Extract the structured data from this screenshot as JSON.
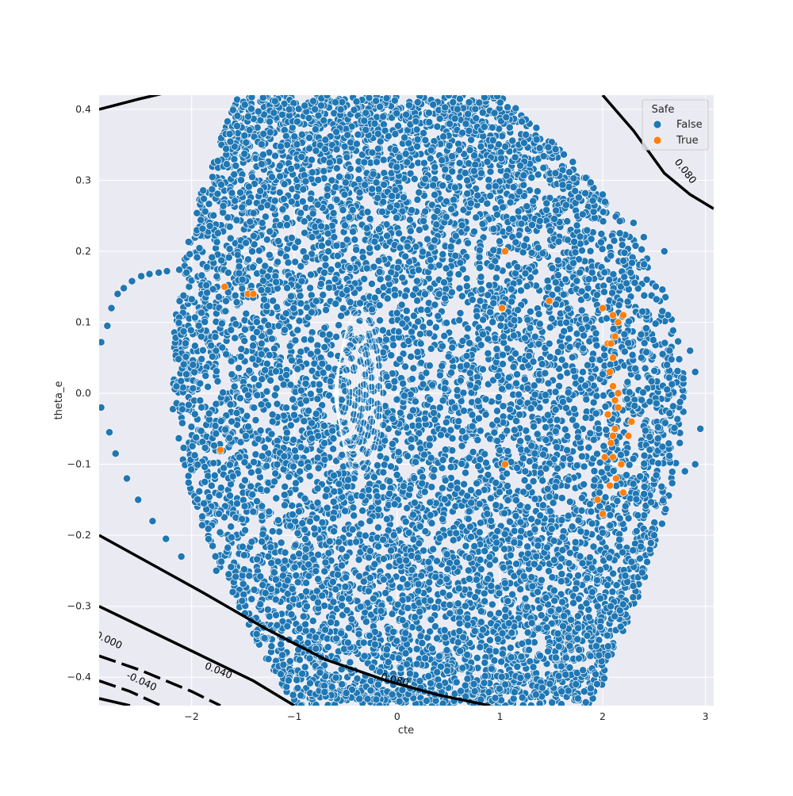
{
  "chart_data": {
    "type": "scatter",
    "title": "",
    "xlabel": "cte",
    "ylabel": "theta_e",
    "xlim": [
      -2.9,
      3.08
    ],
    "ylim": [
      -0.44,
      0.42
    ],
    "grid": true,
    "x_ticks": [
      -2,
      -1,
      0,
      1,
      2,
      3
    ],
    "x_tick_labels": [
      "−2",
      "−1",
      "0",
      "1",
      "2",
      "3"
    ],
    "y_ticks": [
      -0.4,
      -0.3,
      -0.2,
      -0.1,
      0.0,
      0.1,
      0.2,
      0.3,
      0.4
    ],
    "y_tick_labels": [
      "−0.4",
      "−0.3",
      "−0.2",
      "−0.1",
      "0.0",
      "0.1",
      "0.2",
      "0.3",
      "0.4"
    ],
    "legend": {
      "title": "Safe",
      "placement": "top-right",
      "entries": [
        {
          "label": "False",
          "color": "#1f77b4"
        },
        {
          "label": "True",
          "color": "#ff7f0e"
        }
      ]
    },
    "series": [
      {
        "name": "False",
        "color": "#1f77b4",
        "points_x": [
          -2.95,
          -2.88,
          -2.82,
          -2.78,
          -2.72,
          -2.66,
          -2.58,
          -2.49,
          -2.41,
          -2.32,
          -2.24,
          -2.12,
          -2.05,
          -2.88,
          -2.8,
          -2.74,
          -2.63,
          -2.52,
          -2.38,
          -2.25,
          -2.1,
          -1.76,
          -1.6,
          -1.48,
          -1.42,
          -1.3,
          -1.45,
          -1.2,
          -1.05,
          -0.9,
          -0.8,
          -0.6,
          0.2,
          0.7,
          1.6,
          1.74,
          1.88,
          1.76,
          1.82,
          2.5,
          2.9,
          2.85,
          2.95,
          2.9,
          2.4,
          2.6,
          2.3,
          2.0,
          1.9,
          2.75,
          2.8
        ],
        "points_y": [
          0.045,
          0.072,
          0.095,
          0.12,
          0.14,
          0.148,
          0.158,
          0.165,
          0.168,
          0.17,
          0.172,
          0.174,
          0.17,
          -0.02,
          -0.055,
          -0.085,
          -0.12,
          -0.15,
          -0.18,
          -0.205,
          -0.23,
          -0.25,
          -0.28,
          -0.31,
          -0.32,
          -0.33,
          0.39,
          0.395,
          0.4,
          0.405,
          0.4,
          0.41,
          0.41,
          0.41,
          -0.42,
          -0.41,
          -0.37,
          -0.43,
          -0.42,
          -0.2,
          0.03,
          0.06,
          -0.05,
          -0.1,
          0.22,
          0.2,
          0.24,
          0.28,
          -0.28,
          -0.07,
          -0.11
        ]
      },
      {
        "name": "True",
        "color": "#ff7f0e",
        "points_x": [
          2.05,
          2.07,
          2.1,
          2.12,
          2.15,
          2.15,
          2.12,
          2.08,
          2.1,
          2.18,
          2.13,
          2.2,
          2.25,
          2.1,
          2.05,
          2.12,
          1.95,
          2.0,
          2.1,
          2.2,
          2.28,
          1.48,
          2.15,
          1.05,
          1.02,
          1.05,
          -1.68,
          -1.72,
          -1.45,
          -1.4,
          2.0,
          2.07,
          2.1,
          2.08,
          2.02
        ],
        "points_y": [
          0.07,
          0.03,
          0.01,
          -0.01,
          -0.02,
          0.0,
          -0.05,
          -0.07,
          -0.09,
          -0.1,
          -0.12,
          -0.14,
          -0.06,
          0.05,
          -0.03,
          0.08,
          -0.15,
          -0.17,
          -0.06,
          0.11,
          -0.04,
          0.13,
          0.1,
          0.2,
          0.12,
          -0.1,
          0.15,
          -0.08,
          0.14,
          0.14,
          0.12,
          -0.13,
          0.11,
          0.07,
          -0.09
        ]
      }
    ],
    "cloud": {
      "description_values": {
        "theta_min": -0.44,
        "theta_max": 0.42,
        "cte_left_at_top": -1.55,
        "cte_left_at_middle": -2.2,
        "cte_left_at_bottom": -1.0,
        "cte_right_at_top": 1.0,
        "cte_right_at_middle": 2.8,
        "cte_right_at_bottom": 1.9
      }
    },
    "contours": [
      {
        "level_label": "0.080",
        "points": [
          [
            2.0,
            0.42
          ],
          [
            2.3,
            0.37
          ],
          [
            2.6,
            0.31
          ],
          [
            2.85,
            0.28
          ],
          [
            3.08,
            0.26
          ]
        ]
      },
      {
        "level_label": "",
        "points": [
          [
            -2.9,
            0.4
          ],
          [
            -2.5,
            0.415
          ],
          [
            -2.2,
            0.425
          ]
        ]
      },
      {
        "level_label": "0.080",
        "points": [
          [
            -2.9,
            -0.2
          ],
          [
            -2.4,
            -0.24
          ],
          [
            -1.9,
            -0.28
          ],
          [
            -1.3,
            -0.33
          ],
          [
            -0.7,
            -0.375
          ],
          [
            -0.1,
            -0.405
          ],
          [
            0.4,
            -0.425
          ],
          [
            0.9,
            -0.44
          ]
        ]
      },
      {
        "level_label": "0.040",
        "points": [
          [
            -2.9,
            -0.3
          ],
          [
            -2.4,
            -0.335
          ],
          [
            -1.9,
            -0.37
          ],
          [
            -1.4,
            -0.405
          ],
          [
            -1.0,
            -0.44
          ]
        ]
      },
      {
        "level_label": "0.000",
        "points": [
          [
            -2.9,
            -0.37
          ],
          [
            -2.5,
            -0.39
          ],
          [
            -2.0,
            -0.42
          ],
          [
            -1.72,
            -0.44
          ]
        ]
      },
      {
        "level_label": "-0.040",
        "points": [
          [
            -2.9,
            -0.405
          ],
          [
            -2.6,
            -0.42
          ],
          [
            -2.3,
            -0.44
          ]
        ]
      },
      {
        "level_label": "",
        "points": [
          [
            -2.9,
            -0.43
          ],
          [
            -2.6,
            -0.44
          ]
        ]
      }
    ]
  }
}
